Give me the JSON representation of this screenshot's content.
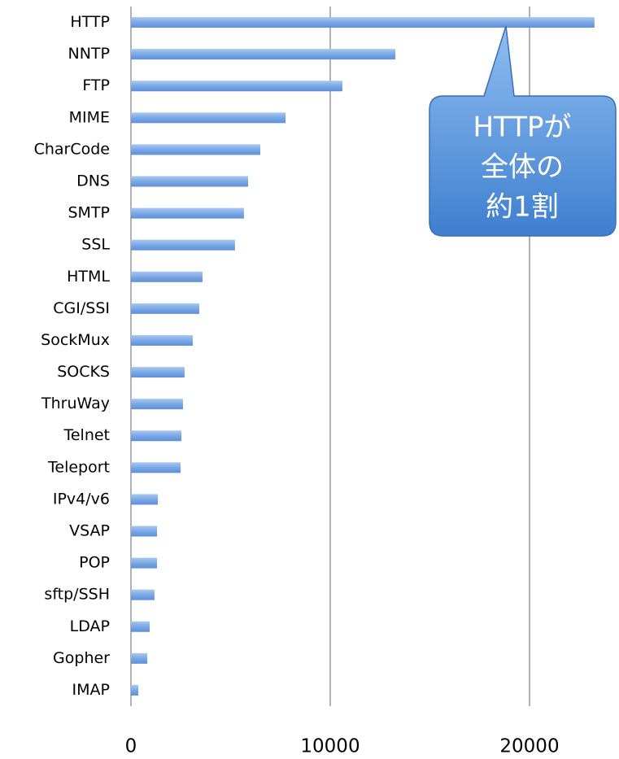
{
  "chart_data": {
    "type": "bar",
    "orientation": "horizontal",
    "categories": [
      "HTTP",
      "NNTP",
      "FTP",
      "MIME",
      "CharCode",
      "DNS",
      "SMTP",
      "SSL",
      "HTML",
      "CGI/SSI",
      "SockMux",
      "SOCKS",
      "ThruWay",
      "Telnet",
      "Teleport",
      "IPv4/v6",
      "VSAP",
      "POP",
      "sftp/SSH",
      "LDAP",
      "Gopher",
      "IMAP"
    ],
    "values": [
      23260,
      13270,
      10610,
      7760,
      6490,
      5880,
      5670,
      5220,
      3590,
      3430,
      3100,
      2690,
      2610,
      2530,
      2490,
      1350,
      1310,
      1310,
      1180,
      940,
      820,
      370
    ],
    "color": "#7aa8e6",
    "xlim": [
      0,
      24000
    ],
    "xticks": [
      0,
      10000,
      20000
    ],
    "grid": true,
    "annotation": [
      "HTTPが",
      "全体の",
      "約1割"
    ]
  }
}
